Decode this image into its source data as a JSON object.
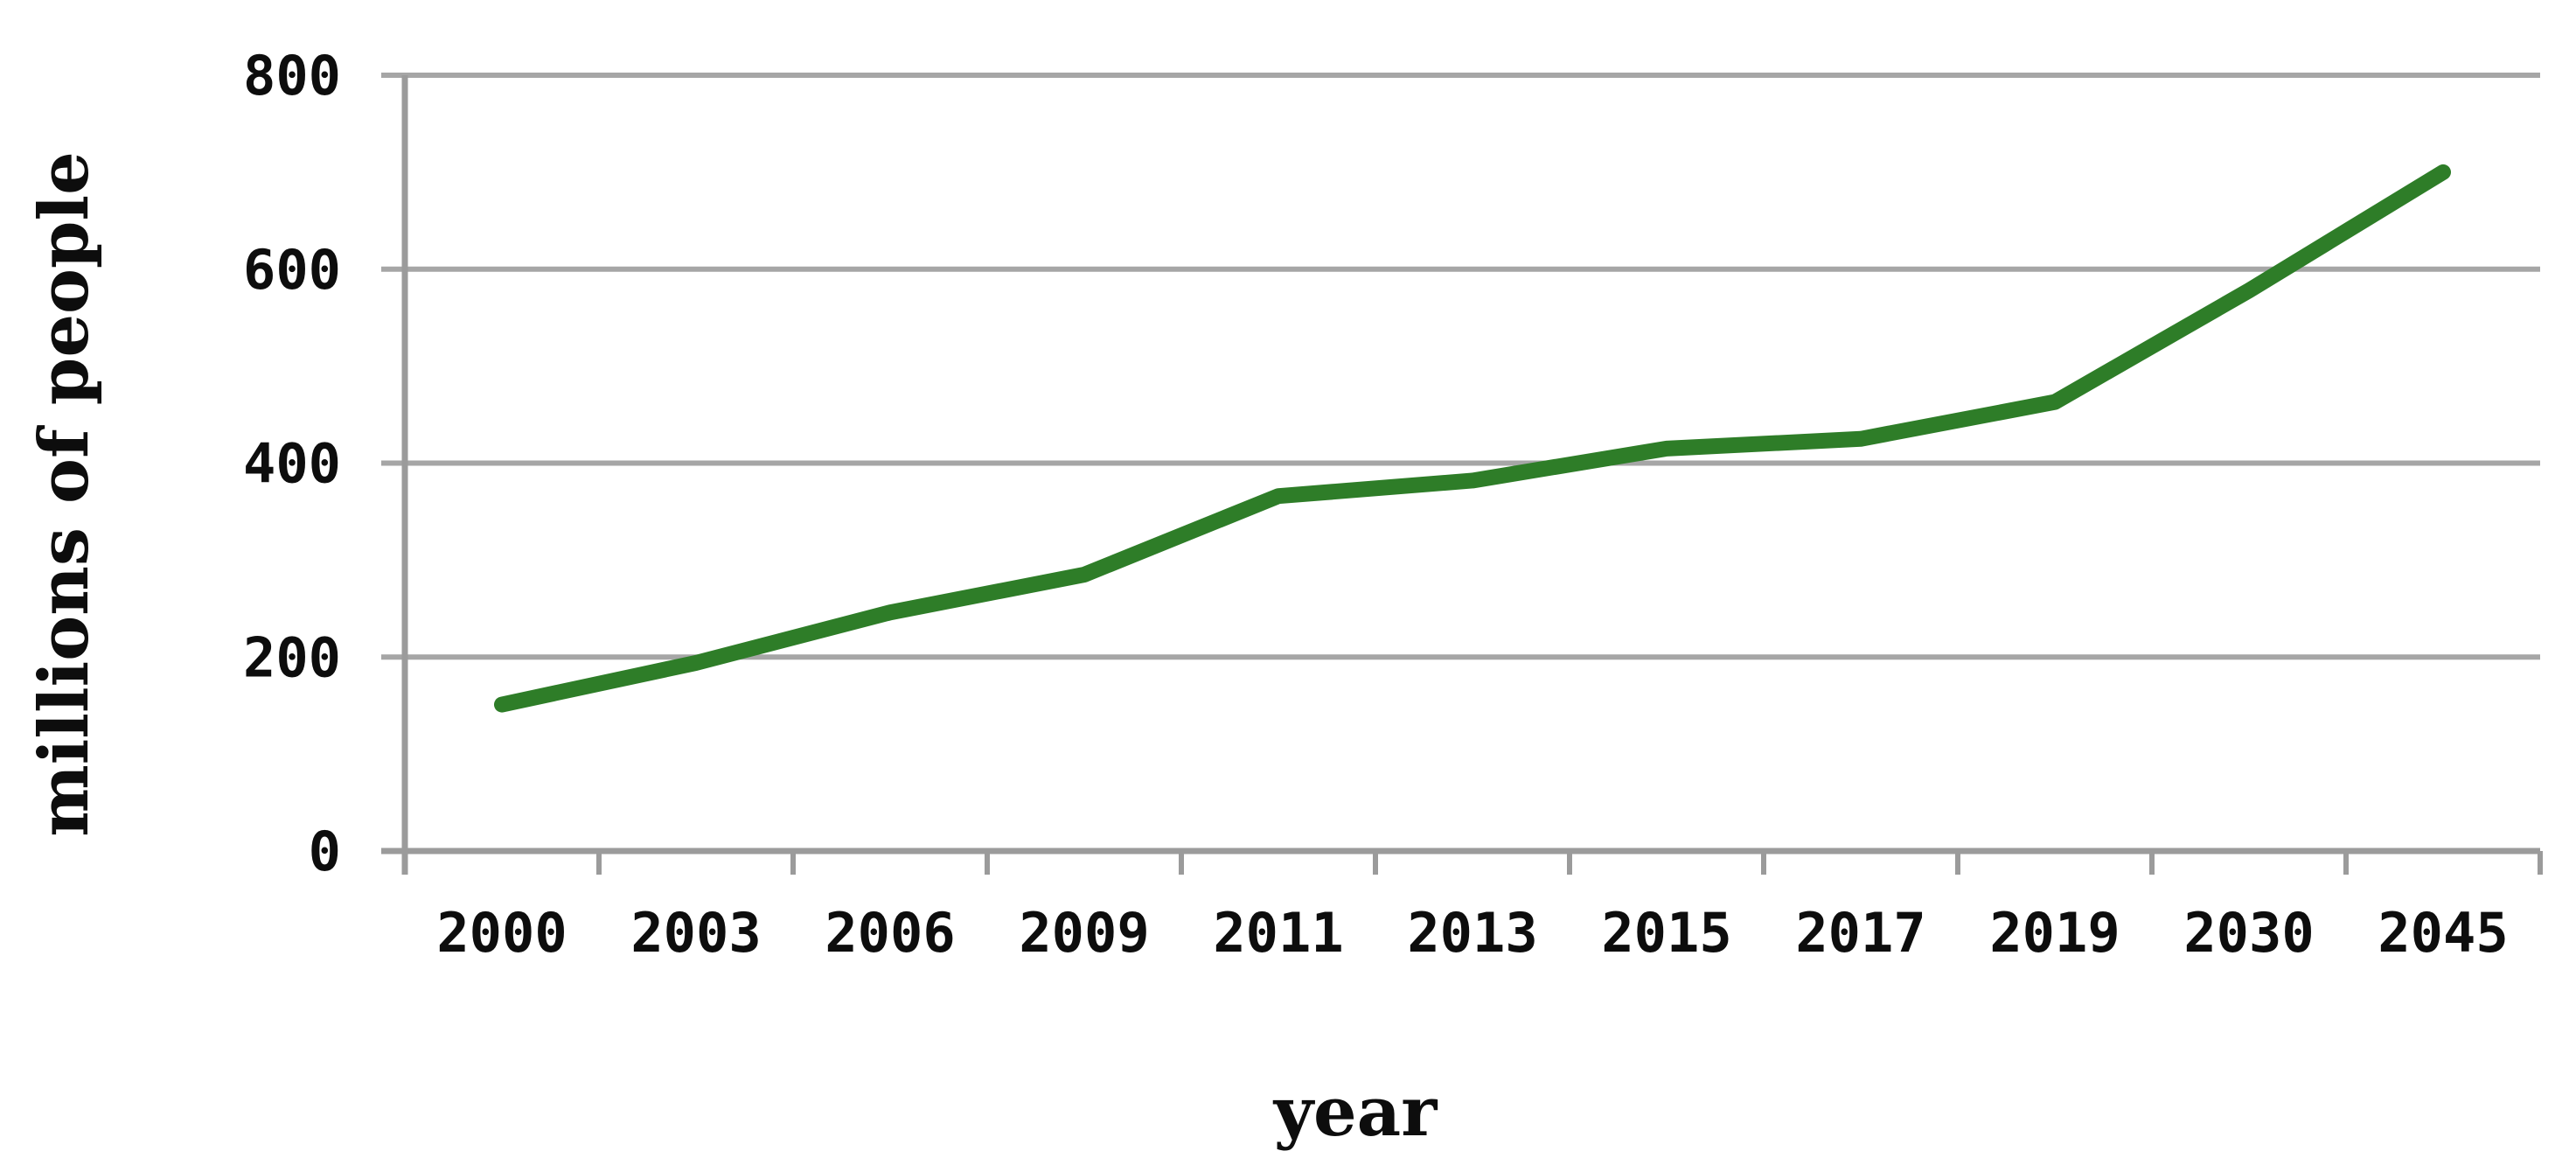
{
  "chart_data": {
    "type": "line",
    "title": "",
    "xlabel": "year",
    "ylabel": "millions of people",
    "categories": [
      "2000",
      "2003",
      "2006",
      "2009",
      "2011",
      "2013",
      "2015",
      "2017",
      "2019",
      "2030",
      "2045"
    ],
    "series": [
      {
        "name": "millions of people",
        "values": [
          151,
          194,
          246,
          285,
          366,
          382,
          415,
          425,
          463,
          578,
          700
        ]
      }
    ],
    "ylim": [
      0,
      800
    ],
    "ytick_step": 200,
    "yticks": [
      0,
      200,
      400,
      600,
      800
    ],
    "grid": "horizontal",
    "legend": "none",
    "colors": {
      "line": "#2e7d28",
      "gridline": "#a6a6a6",
      "axis": "#9b9b9b",
      "text": "#0d0d0d",
      "background": "#ffffff"
    }
  }
}
